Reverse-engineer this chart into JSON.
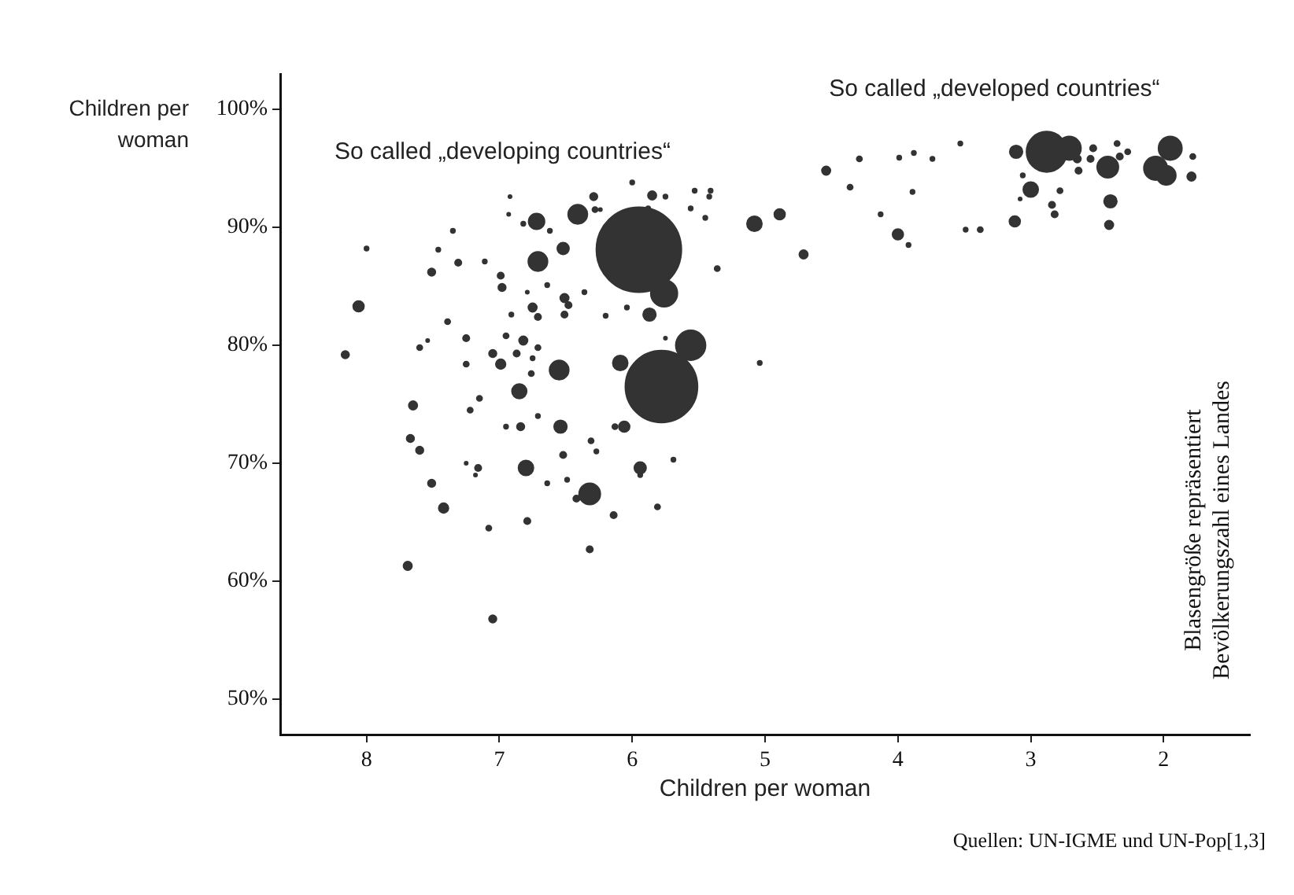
{
  "chart_data": {
    "type": "bubble",
    "xlabel": "Children per woman",
    "ylabel": "Children per woman",
    "xlim": [
      8.65,
      1.35
    ],
    "xticks": [
      8,
      7,
      6,
      5,
      4,
      3,
      2
    ],
    "ylim": [
      47,
      103
    ],
    "yticks": [
      {
        "value": 50,
        "label": "50%"
      },
      {
        "value": 60,
        "label": "60%"
      },
      {
        "value": 70,
        "label": "70%"
      },
      {
        "value": 80,
        "label": "80%"
      },
      {
        "value": 90,
        "label": "90%"
      },
      {
        "value": 100,
        "label": "100%"
      }
    ],
    "series": [
      {
        "color": "#333333",
        "x": [
          5.95,
          5.78,
          8.06,
          8.16,
          8.0,
          7.35,
          7.46,
          7.31,
          7.51,
          7.11,
          7.39,
          7.6,
          7.25,
          7.54,
          6.92,
          6.93,
          6.82,
          6.72,
          6.62,
          6.71,
          6.52,
          6.99,
          6.98,
          6.79,
          6.64,
          6.75,
          6.51,
          6.48,
          6.71,
          6.51,
          6.91,
          6.95,
          6.82,
          6.71,
          7.05,
          6.99,
          6.87,
          6.75,
          6.55,
          7.25,
          6.76,
          6.85,
          7.65,
          7.15,
          7.22,
          6.95,
          6.84,
          6.54,
          6.13,
          6.06,
          6.29,
          6.41,
          6.28,
          6.24,
          6.0,
          5.85,
          5.75,
          5.88,
          5.53,
          5.41,
          5.42,
          5.56,
          5.45,
          5.76,
          6.04,
          6.2,
          5.87,
          6.36,
          5.36,
          5.56,
          6.09,
          5.75,
          5.04,
          5.08,
          4.89,
          7.67,
          7.6,
          7.51,
          7.42,
          7.69,
          7.25,
          7.16,
          7.18,
          7.08,
          7.05,
          6.8,
          6.79,
          6.64,
          6.71,
          6.52,
          6.49,
          6.42,
          6.32,
          6.31,
          6.27,
          6.32,
          6.14,
          5.94,
          5.94,
          5.81,
          5.69,
          4.54,
          4.29,
          4.36,
          3.99,
          3.88,
          3.74,
          3.89,
          4.13,
          4.0,
          3.92,
          4.71,
          3.53,
          3.49,
          3.38,
          3.11,
          2.88,
          2.71,
          2.65,
          2.64,
          3.06,
          3.0,
          3.08,
          2.78,
          2.84,
          2.82,
          3.12,
          2.41,
          2.4,
          2.42,
          2.53,
          2.35,
          2.27,
          2.33,
          1.95,
          2.06,
          1.98,
          1.78,
          1.79,
          2.55
        ],
        "values": [
          88.1,
          76.5,
          83.3,
          79.2,
          88.2,
          89.7,
          88.1,
          87.0,
          86.2,
          87.1,
          82.0,
          79.8,
          80.6,
          80.4,
          92.6,
          91.1,
          90.3,
          90.5,
          89.7,
          87.1,
          88.2,
          85.9,
          84.9,
          84.5,
          85.1,
          83.2,
          84.0,
          83.4,
          82.4,
          82.6,
          82.6,
          80.8,
          80.4,
          79.8,
          79.3,
          78.4,
          79.3,
          78.9,
          77.9,
          78.4,
          77.6,
          76.1,
          74.9,
          75.5,
          74.5,
          73.1,
          73.1,
          73.1,
          73.1,
          73.1,
          92.6,
          91.1,
          91.5,
          91.5,
          93.8,
          92.7,
          92.6,
          91.6,
          93.1,
          93.1,
          92.6,
          91.6,
          90.8,
          84.4,
          83.2,
          82.5,
          82.6,
          84.5,
          86.5,
          80.0,
          78.5,
          80.6,
          78.5,
          90.3,
          91.1,
          72.1,
          71.1,
          68.3,
          66.2,
          61.3,
          70.0,
          69.6,
          69.0,
          64.5,
          56.8,
          69.6,
          65.1,
          68.3,
          74.0,
          70.7,
          68.6,
          67.0,
          67.4,
          71.9,
          71.0,
          62.7,
          65.6,
          69.6,
          69.0,
          66.3,
          70.3,
          94.8,
          95.8,
          93.4,
          95.9,
          96.3,
          95.8,
          93.0,
          91.1,
          89.4,
          88.5,
          87.7,
          97.1,
          89.8,
          89.8,
          96.4,
          96.4,
          96.7,
          95.8,
          94.8,
          94.4,
          93.2,
          92.4,
          93.1,
          91.9,
          91.1,
          90.5,
          90.2,
          92.2,
          95.1,
          96.7,
          97.1,
          96.4,
          96.0,
          96.7,
          95.0,
          94.4,
          96.0,
          94.3,
          95.8
        ],
        "sizes": [
          1,
          0.72,
          0.016,
          0.008,
          0.0025,
          0.0025,
          0.0025,
          0.0056,
          0.0077,
          0.0025,
          0.0039,
          0.0039,
          0.0056,
          0.0014,
          0.0014,
          0.0014,
          0.0025,
          0.035,
          0.0025,
          0.051,
          0.019,
          0.0056,
          0.0077,
          0.0014,
          0.0025,
          0.01,
          0.01,
          0.0056,
          0.0056,
          0.0056,
          0.0025,
          0.0039,
          0.01,
          0.0039,
          0.0077,
          0.013,
          0.0056,
          0.0025,
          0.051,
          0.0039,
          0.0039,
          0.03,
          0.01,
          0.0039,
          0.0039,
          0.0025,
          0.0077,
          0.0225,
          0.0039,
          0.016,
          0.0077,
          0.051,
          0.0039,
          0.0014,
          0.0025,
          0.01,
          0.0025,
          0.0025,
          0.0025,
          0.0025,
          0.0025,
          0.0025,
          0.0025,
          0.098,
          0.0025,
          0.0025,
          0.0225,
          0.0025,
          0.0039,
          0.1225,
          0.031,
          0.0014,
          0.0025,
          0.031,
          0.016,
          0.0077,
          0.0077,
          0.0077,
          0.013,
          0.01,
          0.0014,
          0.0056,
          0.0014,
          0.0039,
          0.0077,
          0.031,
          0.0056,
          0.0025,
          0.0025,
          0.0056,
          0.0025,
          0.0056,
          0.0625,
          0.0039,
          0.0025,
          0.0056,
          0.0056,
          0.019,
          0.0025,
          0.0039,
          0.0025,
          0.01,
          0.0039,
          0.0039,
          0.0025,
          0.0025,
          0.0025,
          0.0025,
          0.0025,
          0.016,
          0.0025,
          0.01,
          0.0025,
          0.0025,
          0.0039,
          0.0225,
          0.2256,
          0.076,
          0.0077,
          0.0056,
          0.0025,
          0.031,
          0.0014,
          0.0039,
          0.0056,
          0.0056,
          0.016,
          0.01,
          0.0225,
          0.0625,
          0.0056,
          0.0039,
          0.0039,
          0.0056,
          0.076,
          0.076,
          0.051,
          0.0039,
          0.01,
          0.0056
        ]
      }
    ],
    "annotations": [
      "So called „developing countries“",
      "So called „developed countries“",
      "Blasengröße repräsentiert\nBevölkerungszahl eines Landes",
      "Quellen: UN-IGME und UN-Pop[1,3]"
    ]
  }
}
